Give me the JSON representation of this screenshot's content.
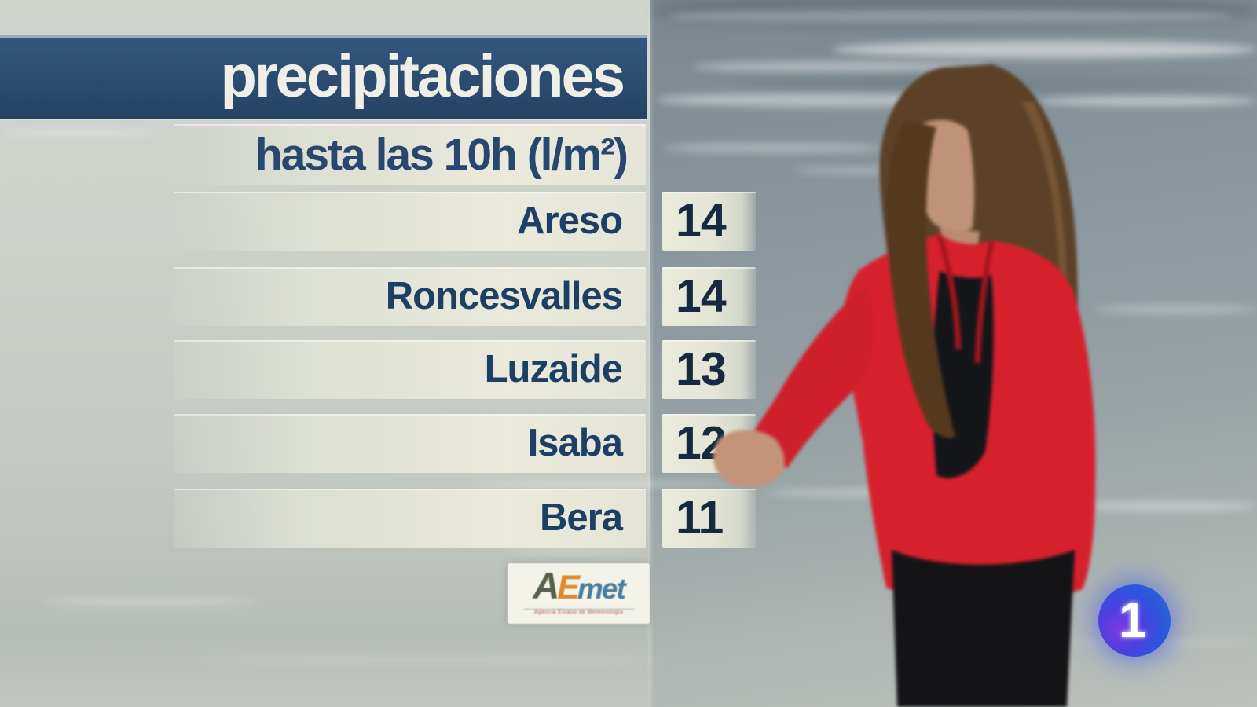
{
  "broadcast": {
    "channel_logo_number": "1"
  },
  "weather_panel": {
    "title": "precipitaciones",
    "subtitle": "hasta las 10h (l/m²)",
    "rows": [
      {
        "location": "Areso",
        "value": "14"
      },
      {
        "location": "Roncesvalles",
        "value": "14"
      },
      {
        "location": "Luzaide",
        "value": "13"
      },
      {
        "location": "Isaba",
        "value": "12"
      },
      {
        "location": "Bera",
        "value": "11"
      }
    ],
    "aemet_logo": {
      "a": "A",
      "e": "E",
      "met": "met",
      "tagline": "Agencia Estatal de Meteorología"
    }
  },
  "chart_data": {
    "type": "table",
    "title": "precipitaciones",
    "subtitle": "hasta las 10h (l/m²)",
    "unit": "l/m²",
    "columns": [
      "location",
      "precipitation_l_m2"
    ],
    "rows": [
      [
        "Areso",
        14
      ],
      [
        "Roncesvalles",
        14
      ],
      [
        "Luzaide",
        13
      ],
      [
        "Isaba",
        12
      ],
      [
        "Bera",
        11
      ]
    ],
    "source": "AEMET"
  },
  "colors": {
    "title_bar_blue": "#2b4b70",
    "title_text": "#efefe6",
    "bar_cream": "#eae9dc",
    "label_text": "#1d3f63",
    "value_text": "#16293e",
    "channel_blue": "#2c55dc",
    "jacket_red": "#d6212d"
  }
}
